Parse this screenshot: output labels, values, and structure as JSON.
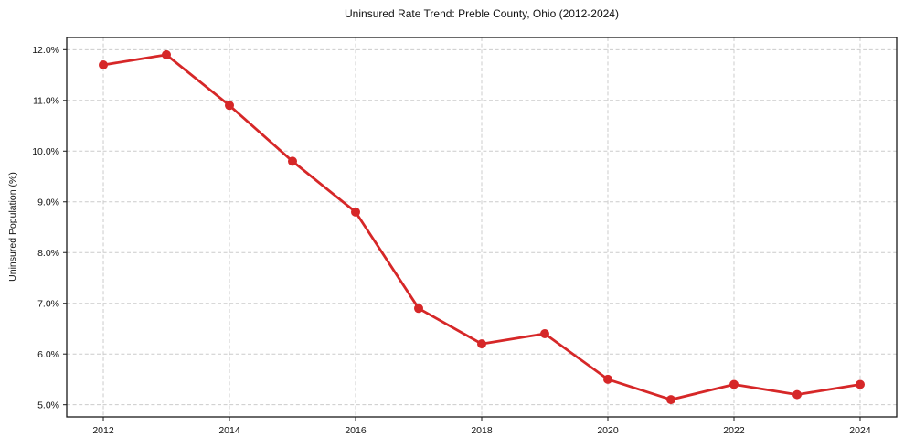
{
  "chart_data": {
    "type": "line",
    "title": "Uninsured Rate Trend: Preble County, Ohio (2012-2024)",
    "xlabel": "",
    "ylabel": "Uninsured Population (%)",
    "x": [
      2012,
      2013,
      2014,
      2015,
      2016,
      2017,
      2018,
      2019,
      2020,
      2021,
      2022,
      2023,
      2024
    ],
    "values": [
      11.7,
      11.9,
      10.9,
      9.8,
      8.8,
      6.9,
      6.2,
      6.4,
      5.5,
      5.1,
      5.4,
      5.2,
      5.4
    ],
    "xlim": [
      2011.42,
      2024.58
    ],
    "ylim": [
      4.76,
      12.24
    ],
    "xticks": [
      2012,
      2014,
      2016,
      2018,
      2020,
      2022,
      2024
    ],
    "xtick_labels": [
      "2012",
      "2014",
      "2016",
      "2018",
      "2020",
      "2022",
      "2024"
    ],
    "yticks": [
      5,
      6,
      7,
      8,
      9,
      10,
      11,
      12
    ],
    "ytick_labels": [
      "5.0%",
      "6.0%",
      "7.0%",
      "8.0%",
      "9.0%",
      "10.0%",
      "11.0%",
      "12.0%"
    ],
    "grid": true,
    "legend_position": "none",
    "line_color": "#d62728",
    "marker": "circle",
    "marker_radius": 5,
    "line_width": 2.8,
    "grid_color": "#cccccc",
    "axis_color": "#1a1a1a",
    "text_color": "#111111",
    "background_color": "#ffffff"
  }
}
